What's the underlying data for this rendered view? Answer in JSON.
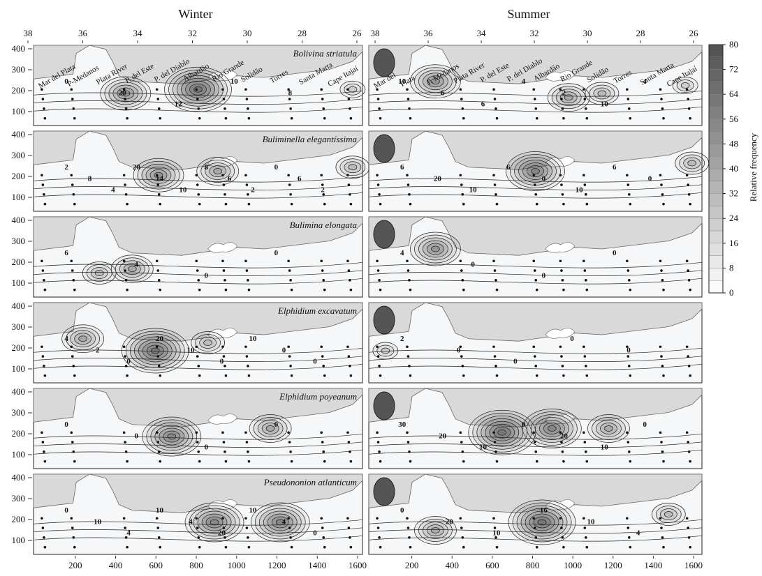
{
  "figure": {
    "columns": [
      "Winter",
      "Summer"
    ],
    "top_axis_ticks": [
      38,
      36,
      34,
      32,
      30,
      28,
      26
    ],
    "bottom_axis_ticks": [
      200,
      400,
      600,
      800,
      1000,
      1200,
      1400,
      1600
    ],
    "y_ticks": [
      100,
      200,
      300,
      400
    ],
    "places": {
      "winter": [
        "Mar del Plata",
        "P-Medanos",
        "Plata River",
        "P. del Este",
        "P. del Diablo",
        "Albardão",
        "Rio Grande",
        "Solidão",
        "Torres",
        "Santa Marta",
        "Cape Itajaí"
      ],
      "summer": [
        "Mar del",
        "Plata",
        "P. Medanos",
        "Plata River",
        "P. del Este",
        "P. del Diablo",
        "Albardão",
        "Rio Grande",
        "Solidão",
        "Torres",
        "Santa Marta",
        "Cape Itajaí"
      ]
    },
    "panels": [
      {
        "species": "Bolivina striatula",
        "contour_labels": {
          "winter": [
            "0",
            "20",
            "12",
            "10",
            "8"
          ],
          "summer": [
            "10",
            "6",
            "6",
            "4",
            "2",
            "10",
            "4"
          ]
        }
      },
      {
        "species": "Buliminella elegantíssima",
        "contour_labels": {
          "winter": [
            "2",
            "8",
            "4",
            "20",
            "14",
            "10",
            "8",
            "6",
            "2",
            "0",
            "6",
            "2"
          ],
          "summer": [
            "6",
            "20",
            "10",
            "6",
            "0",
            "10",
            "6",
            "0"
          ]
        }
      },
      {
        "species": "Bulimina elongata",
        "contour_labels": {
          "winter": [
            "6",
            "4",
            "0",
            "0"
          ],
          "summer": [
            "4",
            "0",
            "0",
            "0"
          ]
        }
      },
      {
        "species": "Elphidium excavatum",
        "contour_labels": {
          "winter": [
            "4",
            "2",
            "0",
            "20",
            "10",
            "0",
            "10",
            "0",
            "0"
          ],
          "summer": [
            "2",
            "0",
            "0",
            "0",
            "0"
          ]
        }
      },
      {
        "species": "Elphidium poyeanum",
        "contour_labels": {
          "winter": [
            "0",
            "0",
            "0",
            "0"
          ],
          "summer": [
            "30",
            "20",
            "10",
            "0",
            "20",
            "10",
            "0"
          ]
        }
      },
      {
        "species": "Pseudononion atlanticum",
        "contour_labels": {
          "winter": [
            "0",
            "10",
            "4",
            "10",
            "4",
            "20",
            "10",
            "4",
            "0"
          ],
          "summer": [
            "0",
            "20",
            "10",
            "16",
            "10",
            "4"
          ]
        }
      }
    ],
    "colorbar": {
      "label": "Relative frequency",
      "ticks": [
        0,
        8,
        16,
        24,
        32,
        40,
        48,
        56,
        64,
        72,
        80
      ]
    }
  }
}
